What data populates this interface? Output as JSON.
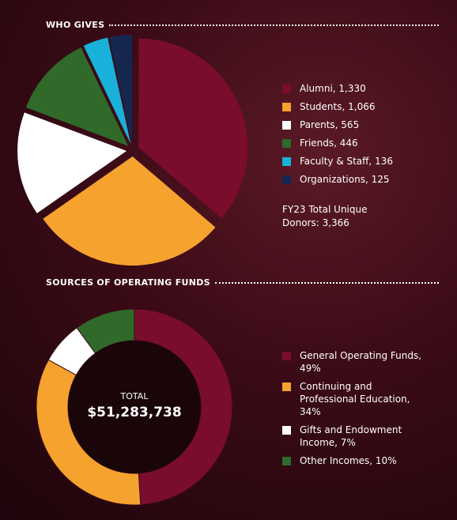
{
  "chart_data": [
    {
      "type": "pie",
      "title": "WHO GIVES",
      "categories": [
        "Alumni, 1,330",
        "Students, 1,066",
        "Parents, 565",
        "Friends, 446",
        "Faculty & Staff, 136",
        "Organizations, 125"
      ],
      "values": [
        1330,
        1066,
        565,
        446,
        136,
        125
      ],
      "colors": [
        "#7a0c2c",
        "#f6a22f",
        "#ffffff",
        "#2f6a2b",
        "#19b1d9",
        "#15264f"
      ],
      "note": "FY23 Total Unique Donors: 3,366"
    },
    {
      "type": "donut",
      "title": "SOURCES OF OPERATING FUNDS",
      "categories": [
        "General Operating Funds, 49%",
        "Continuing and Professional Education, 34%",
        "Gifts and Endowment Income, 7%",
        "Other Incomes, 10%"
      ],
      "values": [
        49,
        34,
        7,
        10
      ],
      "colors": [
        "#7a0c2c",
        "#f6a22f",
        "#ffffff",
        "#2f6a2b"
      ],
      "center_title": "TOTAL",
      "total": {
        "value": 51283738,
        "label": "$51,283,738"
      }
    }
  ]
}
